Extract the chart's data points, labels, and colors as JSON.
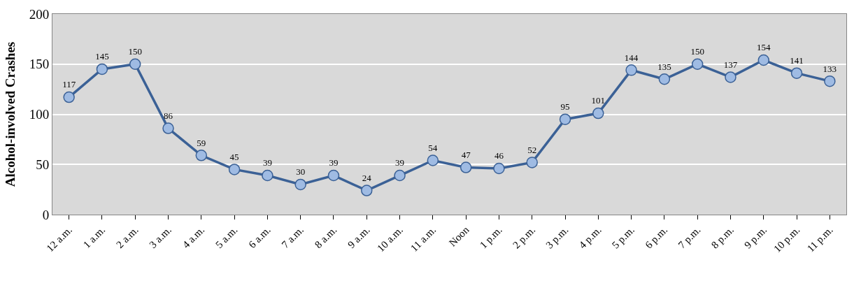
{
  "chart_data": {
    "type": "line",
    "ylabel": "Alcohol-involved Crashes",
    "categories": [
      "12 a.m.",
      "1 a.m.",
      "2 a.m.",
      "3 a.m.",
      "4 a.m.",
      "5 a.m.",
      "6 a.m.",
      "7 a.m.",
      "8 a.m.",
      "9 a.m.",
      "10 a.m.",
      "11 a.m.",
      "Noon",
      "1 p.m.",
      "2 p.m.",
      "3 p.m.",
      "4 p.m.",
      "5 p.m.",
      "6 p.m.",
      "7 p.m.",
      "8 p.m.",
      "9 p.m.",
      "10 p.m.",
      "11 p.m."
    ],
    "series": [
      {
        "color": "#3b6196",
        "values": [
          117,
          145,
          150,
          86,
          59,
          45,
          39,
          30,
          39,
          24,
          39,
          54,
          47,
          46,
          52,
          95,
          101,
          144,
          135,
          150,
          137,
          154,
          141,
          133
        ]
      }
    ],
    "ylim": [
      0,
      200
    ],
    "yticks": [
      0,
      50,
      100,
      150,
      200
    ],
    "grid": "y",
    "marker": "circle",
    "line_style": "solid",
    "data_labels": true
  }
}
